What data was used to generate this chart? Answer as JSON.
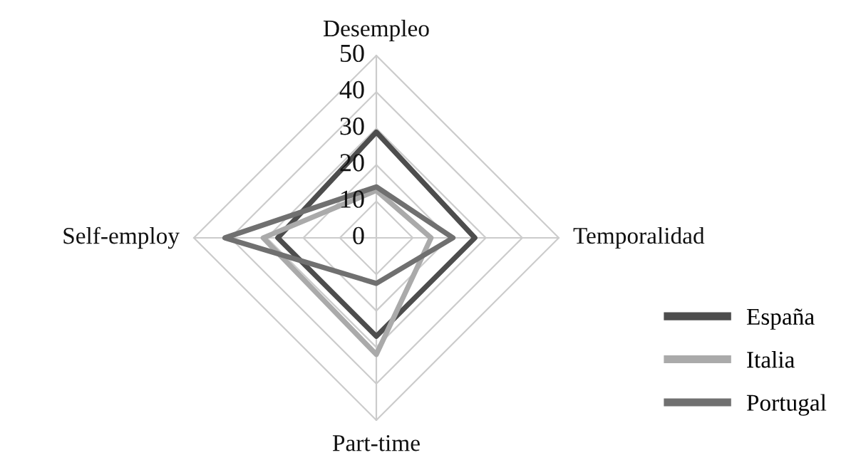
{
  "chart_data": {
    "type": "radar",
    "categories": [
      "Desempleo",
      "Temporalidad",
      "Part-time",
      "Self-employ"
    ],
    "series": [
      {
        "name": "España",
        "color": "#4d4d4d",
        "values": [
          29,
          27,
          27,
          27
        ]
      },
      {
        "name": "Italia",
        "color": "#aaaaaa",
        "values": [
          13,
          15,
          32,
          31
        ]
      },
      {
        "name": "Portugal",
        "color": "#707070",
        "values": [
          14,
          21,
          12.5,
          41.5
        ]
      }
    ],
    "ylim": [
      0,
      50
    ],
    "yticks": [
      0,
      10,
      20,
      30,
      40,
      50
    ],
    "grid": true,
    "legend": "bottom right",
    "marker": "none",
    "line_style": "solid"
  }
}
